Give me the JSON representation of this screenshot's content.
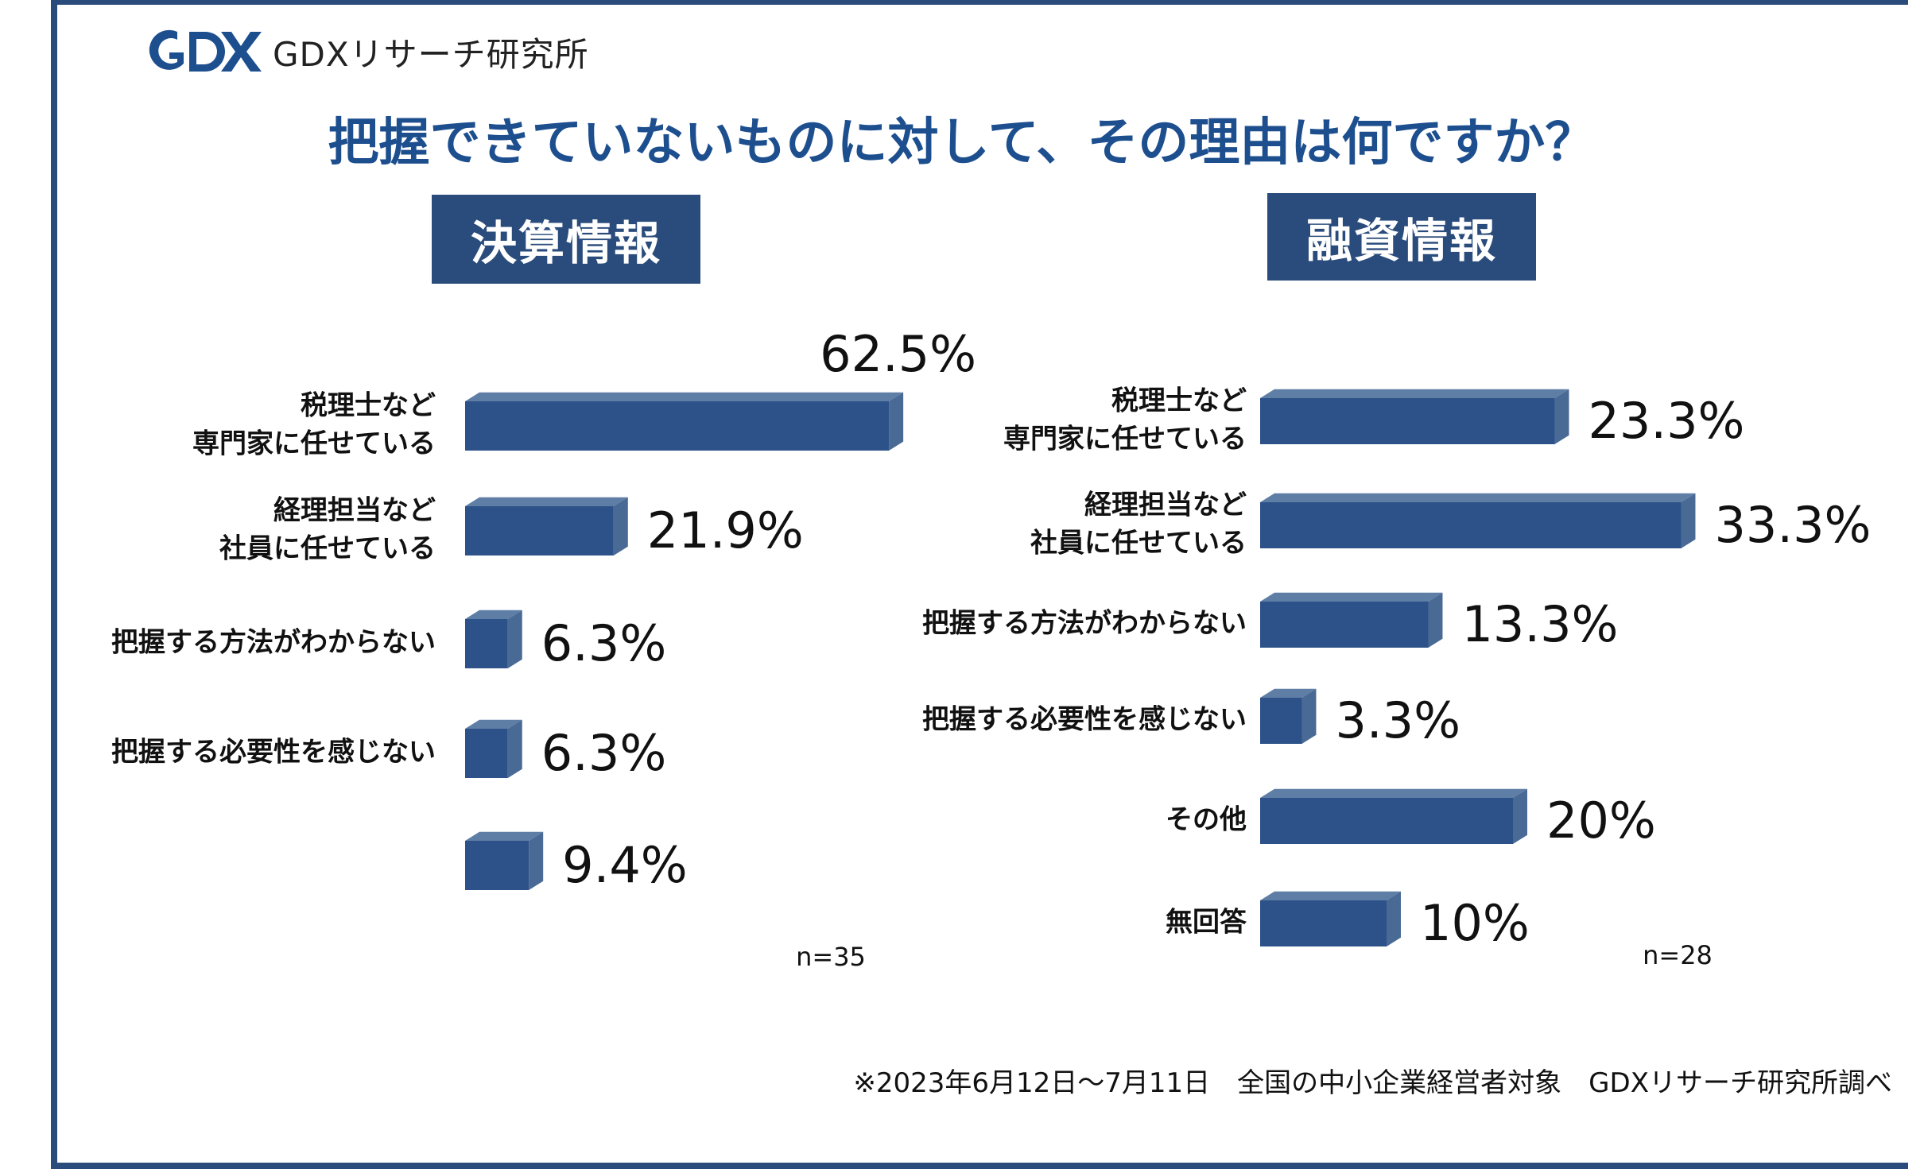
{
  "logo": {
    "brand": "GDX",
    "text": "GDXリサーチ研究所"
  },
  "title": "把握できていないものに対して、その理由は何ですか？",
  "footnote": "※2023年6月12日～7月11日　全国の中小企業経営者対象　GDXリサーチ研究所調べ",
  "colors": {
    "bar_front": "#2c5289",
    "bar_top": "#5f7ea6",
    "bar_side": "#4a6a96",
    "header_bg": "#2a4c7c",
    "title": "#1d4f8f"
  },
  "chart_data": [
    {
      "type": "bar",
      "orientation": "horizontal",
      "title": "決算情報",
      "n_label": "n=35",
      "categories": [
        [
          "税理士など",
          "専門家に任せている"
        ],
        [
          "経理担当など",
          "社員に任せている"
        ],
        [
          "把握する方法がわからない"
        ],
        [
          "把握する必要性を感じない"
        ],
        []
      ],
      "values": [
        62.5,
        21.9,
        6.3,
        6.3,
        9.4
      ],
      "value_labels": [
        "62.5%",
        "21.9%",
        "6.3%",
        "6.3%",
        "9.4%"
      ]
    },
    {
      "type": "bar",
      "orientation": "horizontal",
      "title": "融資情報",
      "n_label": "n=28",
      "categories": [
        [
          "税理士など",
          "専門家に任せている"
        ],
        [
          "経理担当など",
          "社員に任せている"
        ],
        [
          "把握する方法がわからない"
        ],
        [
          "把握する必要性を感じない"
        ],
        [
          "その他"
        ],
        [
          "無回答"
        ]
      ],
      "values": [
        23.3,
        33.3,
        13.3,
        3.3,
        20,
        10
      ],
      "value_labels": [
        "23.3%",
        "33.3%",
        "13.3%",
        "3.3%",
        "20%",
        "10%"
      ]
    }
  ]
}
